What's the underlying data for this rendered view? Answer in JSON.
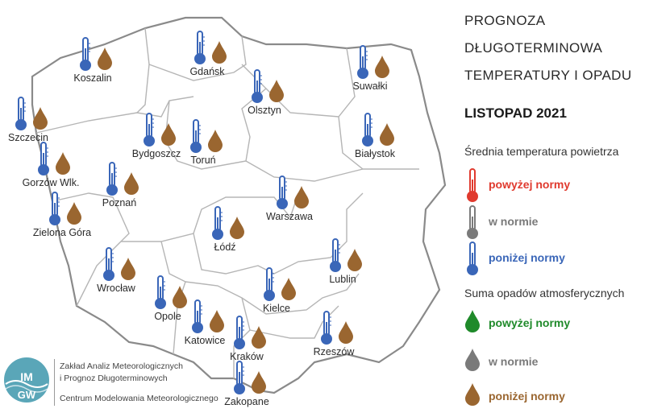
{
  "title_lines": [
    "PROGNOZA",
    "DŁUGOTERMINOWA",
    "TEMPERATURY I OPADU"
  ],
  "period": "LISTOPAD 2021",
  "legend": {
    "temperature_heading": "Średnia temperatura powietrza",
    "temperature_items": [
      {
        "label": "powyżej normy",
        "color": "#e03a2e",
        "icon": "thermometer-icon"
      },
      {
        "label": "w normie",
        "color": "#7a7a7a",
        "icon": "thermometer-icon"
      },
      {
        "label": "poniżej normy",
        "color": "#3a66b8",
        "icon": "thermometer-icon"
      }
    ],
    "precipitation_heading": "Suma opadów atmosferycznych",
    "precipitation_items": [
      {
        "label": "powyżej normy",
        "color": "#1f8a2a",
        "icon": "drop-icon"
      },
      {
        "label": "w normie",
        "color": "#7a7a7a",
        "icon": "drop-icon"
      },
      {
        "label": "poniżej normy",
        "color": "#9a6630",
        "icon": "drop-icon"
      }
    ]
  },
  "cities": [
    {
      "name": "Koszalin",
      "temperature": "poniżej normy",
      "precipitation": "poniżej normy"
    },
    {
      "name": "Gdańsk",
      "temperature": "poniżej normy",
      "precipitation": "poniżej normy"
    },
    {
      "name": "Suwałki",
      "temperature": "poniżej normy",
      "precipitation": "poniżej normy"
    },
    {
      "name": "Olsztyn",
      "temperature": "poniżej normy",
      "precipitation": "poniżej normy"
    },
    {
      "name": "Szczecin",
      "temperature": "poniżej normy",
      "precipitation": "poniżej normy"
    },
    {
      "name": "Bydgoszcz",
      "temperature": "poniżej normy",
      "precipitation": "poniżej normy"
    },
    {
      "name": "Toruń",
      "temperature": "poniżej normy",
      "precipitation": "poniżej normy"
    },
    {
      "name": "Białystok",
      "temperature": "poniżej normy",
      "precipitation": "poniżej normy"
    },
    {
      "name": "Gorzów Wlk.",
      "temperature": "poniżej normy",
      "precipitation": "poniżej normy"
    },
    {
      "name": "Poznań",
      "temperature": "poniżej normy",
      "precipitation": "poniżej normy"
    },
    {
      "name": "Warszawa",
      "temperature": "poniżej normy",
      "precipitation": "poniżej normy"
    },
    {
      "name": "Zielona Góra",
      "temperature": "poniżej normy",
      "precipitation": "poniżej normy"
    },
    {
      "name": "Łódź",
      "temperature": "poniżej normy",
      "precipitation": "poniżej normy"
    },
    {
      "name": "Lublin",
      "temperature": "poniżej normy",
      "precipitation": "poniżej normy"
    },
    {
      "name": "Wrocław",
      "temperature": "poniżej normy",
      "precipitation": "poniżej normy"
    },
    {
      "name": "Kielce",
      "temperature": "poniżej normy",
      "precipitation": "poniżej normy"
    },
    {
      "name": "Opole",
      "temperature": "poniżej normy",
      "precipitation": "poniżej normy"
    },
    {
      "name": "Katowice",
      "temperature": "poniżej normy",
      "precipitation": "poniżej normy"
    },
    {
      "name": "Kraków",
      "temperature": "poniżej normy",
      "precipitation": "poniżej normy"
    },
    {
      "name": "Rzeszów",
      "temperature": "poniżej normy",
      "precipitation": "poniżej normy"
    },
    {
      "name": "Zakopane",
      "temperature": "poniżej normy",
      "precipitation": "poniżej normy"
    }
  ],
  "organization": {
    "logo_text": "IMGW",
    "line1": "Zakład Analiz Meteorologicznych",
    "line2": "i Prognoz Długoterminowych",
    "line3": "Centrum Modelowania Meteorologicznego"
  }
}
